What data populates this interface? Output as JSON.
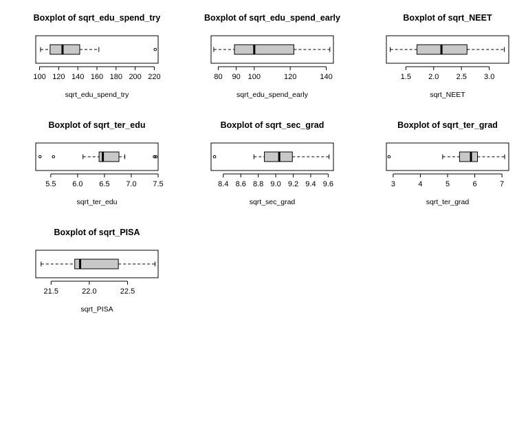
{
  "chart_data": [
    {
      "type": "boxplot",
      "title": "Boxplot of sqrt_edu_spend_try",
      "xlabel": "sqrt_edu_spend_try",
      "xlim": [
        96,
        224
      ],
      "ticks": [
        100,
        120,
        140,
        160,
        180,
        200,
        220
      ],
      "tick_labels": [
        "100",
        "120",
        "140",
        "160",
        "180",
        "200",
        "220"
      ],
      "whisker_low": 101,
      "q1": 111,
      "median": 124,
      "q3": 142,
      "whisker_high": 162,
      "outliers": [
        221
      ],
      "box_fill": "#c8c8c8"
    },
    {
      "type": "boxplot",
      "title": "Boxplot of sqrt_edu_spend_early",
      "xlabel": "sqrt_edu_spend_early",
      "xlim": [
        76,
        144
      ],
      "ticks": [
        80,
        90,
        100,
        120,
        140
      ],
      "tick_labels": [
        "80",
        "90",
        "100",
        "120",
        "140"
      ],
      "whisker_low": 77.5,
      "q1": 89,
      "median": 100,
      "q3": 122,
      "whisker_high": 142,
      "outliers": [],
      "box_fill": "#c8c8c8"
    },
    {
      "type": "boxplot",
      "title": "Boxplot of sqrt_NEET",
      "xlabel": "sqrt_NEET",
      "xlim": [
        1.15,
        3.35
      ],
      "ticks": [
        1.5,
        2.0,
        2.5,
        3.0
      ],
      "tick_labels": [
        "1.5",
        "2.0",
        "2.5",
        "3.0"
      ],
      "whisker_low": 1.22,
      "q1": 1.7,
      "median": 2.14,
      "q3": 2.6,
      "whisker_high": 3.27,
      "outliers": [],
      "box_fill": "#c8c8c8"
    },
    {
      "type": "boxplot",
      "title": "Boxplot of sqrt_ter_edu",
      "xlabel": "sqrt_ter_edu",
      "xlim": [
        5.22,
        7.5
      ],
      "ticks": [
        5.5,
        6.0,
        6.5,
        7.0,
        7.5
      ],
      "tick_labels": [
        "5.5",
        "6.0",
        "6.5",
        "7.0",
        "7.5"
      ],
      "whisker_low": 6.1,
      "q1": 6.4,
      "median": 6.47,
      "q3": 6.77,
      "whisker_high": 6.88,
      "outliers": [
        5.3,
        5.55,
        7.43,
        7.46
      ],
      "box_fill": "#c8c8c8"
    },
    {
      "type": "boxplot",
      "title": "Boxplot of sqrt_sec_grad",
      "xlabel": "sqrt_sec_grad",
      "xlim": [
        8.26,
        9.66
      ],
      "ticks": [
        8.4,
        8.6,
        8.8,
        9.0,
        9.2,
        9.4,
        9.6
      ],
      "tick_labels": [
        "8.4",
        "8.6",
        "8.8",
        "9.0",
        "9.2",
        "9.4",
        "9.6"
      ],
      "whisker_low": 8.75,
      "q1": 8.87,
      "median": 9.04,
      "q3": 9.19,
      "whisker_high": 9.61,
      "outliers": [
        8.3
      ],
      "box_fill": "#c8c8c8"
    },
    {
      "type": "boxplot",
      "title": "Boxplot of sqrt_ter_grad",
      "xlabel": "sqrt_ter_grad",
      "xlim": [
        2.75,
        7.25
      ],
      "ticks": [
        3,
        4,
        5,
        6,
        7
      ],
      "tick_labels": [
        "3",
        "4",
        "5",
        "6",
        "7"
      ],
      "whisker_low": 4.82,
      "q1": 5.44,
      "median": 5.86,
      "q3": 6.1,
      "whisker_high": 7.1,
      "outliers": [
        2.85
      ],
      "box_fill": "#c8c8c8"
    },
    {
      "type": "boxplot",
      "title": "Boxplot of sqrt_PISA",
      "xlabel": "sqrt_PISA",
      "xlim": [
        21.3,
        22.9
      ],
      "ticks": [
        21.5,
        22.0,
        22.5
      ],
      "tick_labels": [
        "21.5",
        "22.0",
        "22.5"
      ],
      "whisker_low": 21.37,
      "q1": 21.81,
      "median": 21.88,
      "q3": 22.38,
      "whisker_high": 22.86,
      "outliers": [],
      "box_fill": "#c8c8c8"
    }
  ]
}
